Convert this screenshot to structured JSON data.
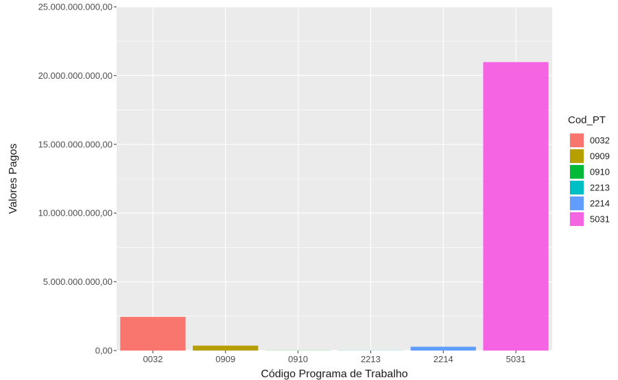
{
  "chart_data": {
    "type": "bar",
    "title": "",
    "xlabel": "Código Programa de Trabalho",
    "ylabel": "Valores Pagos",
    "categories": [
      "0032",
      "0909",
      "0910",
      "2213",
      "2214",
      "5031"
    ],
    "values": [
      2450000000,
      360000000,
      10000000,
      10000000,
      280000000,
      20980000000
    ],
    "colors": [
      "#F8766D",
      "#B79F00",
      "#00BA38",
      "#00BFC4",
      "#619CFF",
      "#F564E3"
    ],
    "ylim": [
      0,
      25000000000
    ],
    "yticks": [
      0,
      5000000000,
      10000000000,
      15000000000,
      20000000000,
      25000000000
    ],
    "ytick_labels": [
      "0,00",
      "5.000.000.000,00",
      "10.000.000.000,00",
      "15.000.000.000,00",
      "20.000.000.000,00",
      "25.000.000.000,00"
    ],
    "grid": true,
    "legend": {
      "title": "Cod_PT",
      "position": "right",
      "entries": [
        "0032",
        "0909",
        "0910",
        "2213",
        "2214",
        "5031"
      ]
    },
    "panel_background": "#EBEBEB",
    "grid_color": "#FFFFFF"
  }
}
